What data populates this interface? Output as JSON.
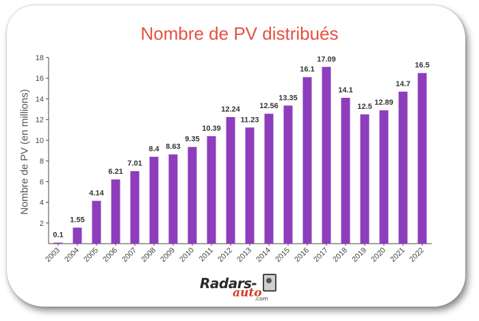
{
  "chart_data": {
    "type": "bar",
    "title": "Nombre de PV distribués",
    "xlabel": "",
    "ylabel": "Nombre de PV (en millions)",
    "categories": [
      "2003",
      "2004",
      "2005",
      "2006",
      "2007",
      "2008",
      "2009",
      "2010",
      "2011",
      "2012",
      "2013",
      "2014",
      "2015",
      "2016",
      "2017",
      "2018",
      "2019",
      "2020",
      "2021",
      "2022"
    ],
    "values": [
      0.1,
      1.55,
      4.14,
      6.21,
      7.01,
      8.4,
      8.63,
      9.35,
      10.39,
      12.24,
      11.23,
      12.56,
      13.35,
      16.1,
      17.09,
      14.1,
      12.5,
      12.89,
      14.7,
      16.5
    ],
    "value_labels": [
      "0.1",
      "1.55",
      "4.14",
      "6.21",
      "7.01",
      "8.4",
      "8.63",
      "9.35",
      "10.39",
      "12.24",
      "11.23",
      "12.56",
      "13.35",
      "16.1",
      "17.09",
      "14.1",
      "12.5",
      "12.89",
      "14.7",
      "16.5"
    ],
    "yticks": [
      2,
      4,
      6,
      8,
      10,
      12,
      14,
      16,
      18
    ],
    "ylim": [
      0,
      18
    ],
    "grid": false,
    "bar_color": "#8e3dbd",
    "title_color": "#e8503f"
  },
  "logo": {
    "text_main": "Radars-",
    "text_sub": "auto",
    "text_domain": ".com"
  }
}
